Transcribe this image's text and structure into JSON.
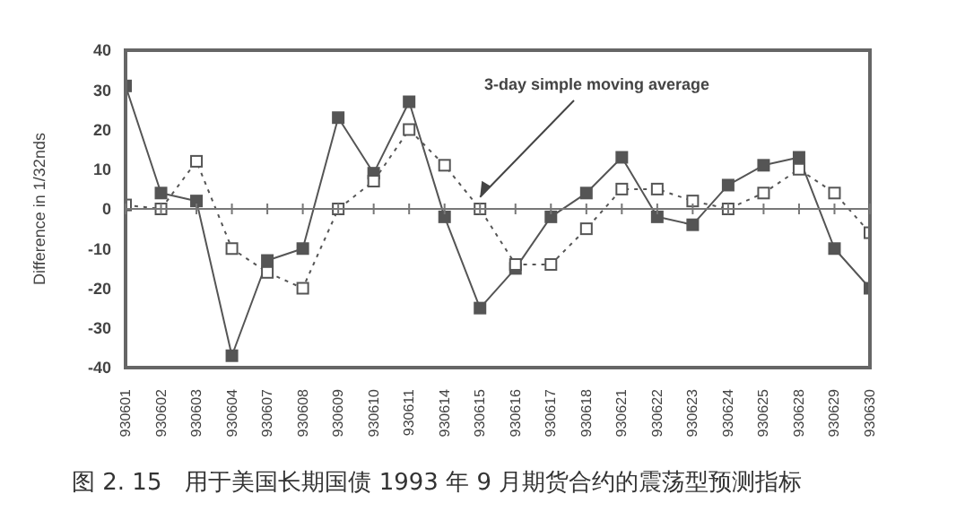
{
  "chart_data": {
    "type": "line",
    "ylabel": "Difference in 1/32nds",
    "categories": [
      "930601",
      "930602",
      "930603",
      "930604",
      "930607",
      "930608",
      "930609",
      "930610",
      "930611",
      "930614",
      "930615",
      "930616",
      "930617",
      "930618",
      "930621",
      "930622",
      "930623",
      "930624",
      "930625",
      "930628",
      "930629",
      "930630"
    ],
    "series": [
      {
        "color": "#555555",
        "line_style": "solid",
        "values": [
          31,
          4,
          2,
          -37,
          -13,
          -10,
          23,
          9,
          27,
          -2,
          -25,
          -15,
          -2,
          4,
          13,
          -2,
          -4,
          6,
          11,
          13,
          -10,
          -20
        ]
      },
      {
        "color": "#555555",
        "line_style": "dotted",
        "values": [
          1,
          0,
          12,
          -10,
          -16,
          -20,
          0,
          7,
          20,
          11,
          0,
          -14,
          -14,
          -5,
          5,
          5,
          2,
          0,
          4,
          10,
          4,
          -6
        ]
      }
    ],
    "ylim": [
      -40,
      40
    ],
    "yticks": [
      -40,
      -30,
      -20,
      -10,
      0,
      10,
      20,
      30,
      40
    ],
    "marker": "square",
    "ref_lines": [
      {
        "axis": "y",
        "value": 0
      }
    ],
    "annotations": [
      {
        "text": "3-day simple moving average",
        "x": "930615",
        "y": 3
      },
      "图 2. 15　用于美国长期国债 1993 年 9 月期货合约的震荡型预测指标"
    ]
  }
}
